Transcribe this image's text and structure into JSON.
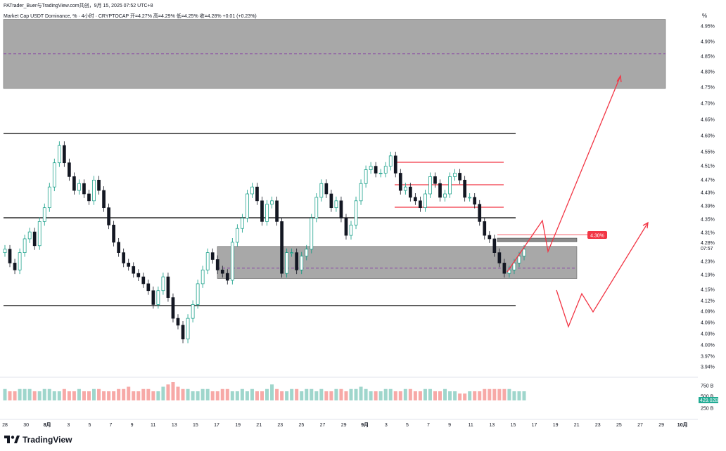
{
  "header": {
    "author": "PATrader_Buer与TradingView.com共创，9月 15, 2025 07:52 UTC+8",
    "symbol": "Market Cap USDT Dominance, %  · 4小时 · CRYPTOCAP   开=4.27%   高=4.29%   低=4.25%   收=4.28%   +0.01 (+0.23%)",
    "unit": "%"
  },
  "footer": {
    "brand": "TradingView"
  },
  "colors": {
    "up": "#089981",
    "down": "#131722",
    "line": "#000000",
    "zone": "#9e9e9e",
    "annot": "#f23645",
    "vol_up": "#9fd6cc",
    "vol_down": "#f7a9a7"
  },
  "chart_data": {
    "type": "candlestick",
    "title": "Market Cap USDT Dominance, %",
    "interval": "4小时",
    "exchange": "CRYPTOCAP",
    "ohlc": {
      "open": "4.27%",
      "high": "4.29%",
      "low": "4.25%",
      "close": "4.28%",
      "change": "+0.01 (+0.23%)"
    },
    "y_ticks": [
      "4.95%",
      "4.90%",
      "4.85%",
      "4.80%",
      "4.75%",
      "4.70%",
      "4.65%",
      "4.60%",
      "4.55%",
      "4.51%",
      "4.47%",
      "4.43%",
      "4.39%",
      "4.35%",
      "4.31%",
      "4.23%",
      "4.19%",
      "4.15%",
      "4.12%",
      "4.09%",
      "4.06%",
      "4.03%",
      "4.00%",
      "3.97%",
      "3.94%"
    ],
    "x_ticks": [
      "28",
      "30",
      "8月",
      "3",
      "5",
      "7",
      "9",
      "11",
      "13",
      "15",
      "17",
      "19",
      "21",
      "23",
      "25",
      "27",
      "29",
      "9月",
      "3",
      "5",
      "7",
      "9",
      "11",
      "13",
      "15",
      "17",
      "19",
      "21",
      "23",
      "25",
      "27",
      "29",
      "10月"
    ],
    "current_price_label": "4.28%",
    "countdown": "07:57",
    "alert_label": "4.30%",
    "volume_ticks": [
      "750 B",
      "500 B",
      "250 B"
    ],
    "current_volume_label": "429.02B",
    "closes": [
      4.28,
      4.24,
      4.22,
      4.27,
      4.31,
      4.33,
      4.29,
      4.36,
      4.4,
      4.46,
      4.53,
      4.58,
      4.53,
      4.49,
      4.45,
      4.47,
      4.44,
      4.42,
      4.48,
      4.45,
      4.4,
      4.35,
      4.3,
      4.27,
      4.24,
      4.23,
      4.21,
      4.2,
      4.18,
      4.16,
      4.12,
      4.16,
      4.2,
      4.14,
      4.08,
      4.06,
      4.02,
      4.08,
      4.12,
      4.18,
      4.22,
      4.27,
      4.25,
      4.22,
      4.21,
      4.19,
      4.3,
      4.34,
      4.37,
      4.44,
      4.46,
      4.42,
      4.36,
      4.41,
      4.42,
      4.36,
      4.21,
      4.27,
      4.27,
      4.22,
      4.26,
      4.28,
      4.37,
      4.43,
      4.47,
      4.44,
      4.4,
      4.42,
      4.37,
      4.32,
      4.35,
      4.42,
      4.47,
      4.51,
      4.52,
      4.5,
      4.5,
      4.52,
      4.55,
      4.5,
      4.45,
      4.46,
      4.43,
      4.42,
      4.4,
      4.44,
      4.49,
      4.47,
      4.43,
      4.44,
      4.49,
      4.5,
      4.48,
      4.43,
      4.43,
      4.41,
      4.36,
      4.32,
      4.31,
      4.27,
      4.24,
      4.21,
      4.22,
      4.24,
      4.26,
      4.28
    ],
    "volume": [
      5,
      4,
      4,
      5,
      5,
      5,
      4,
      4,
      5,
      5,
      4,
      4,
      5,
      4,
      4,
      5,
      4,
      4,
      5,
      5,
      4,
      4,
      4,
      5,
      5,
      6,
      4,
      4,
      5,
      5,
      4,
      4,
      6,
      7,
      8,
      6,
      5,
      5,
      4,
      4,
      5,
      5,
      4,
      4,
      5,
      5,
      4,
      4,
      5,
      4,
      5,
      4,
      4,
      5,
      7,
      5,
      4,
      4,
      5,
      5,
      4,
      5,
      5,
      4,
      5,
      4,
      4,
      5,
      5,
      4,
      5,
      5,
      6,
      5,
      4,
      4,
      4,
      5,
      5,
      4,
      4,
      5,
      5,
      4,
      4,
      5,
      5,
      4,
      4,
      5,
      4,
      4,
      3,
      3,
      4,
      4,
      4,
      5,
      5,
      5,
      5,
      5,
      5,
      4,
      4,
      4
    ],
    "levels": [
      4.604,
      4.357,
      4.104
    ],
    "red_levels": [
      4.516,
      4.456,
      4.383
    ],
    "zones": [
      {
        "from": 4.745,
        "to": 4.945,
        "mid": 4.845
      },
      {
        "from": 4.195,
        "to": 4.288,
        "mid": 4.225
      }
    ],
    "small_box": [
      4.29,
      4.31
    ]
  }
}
